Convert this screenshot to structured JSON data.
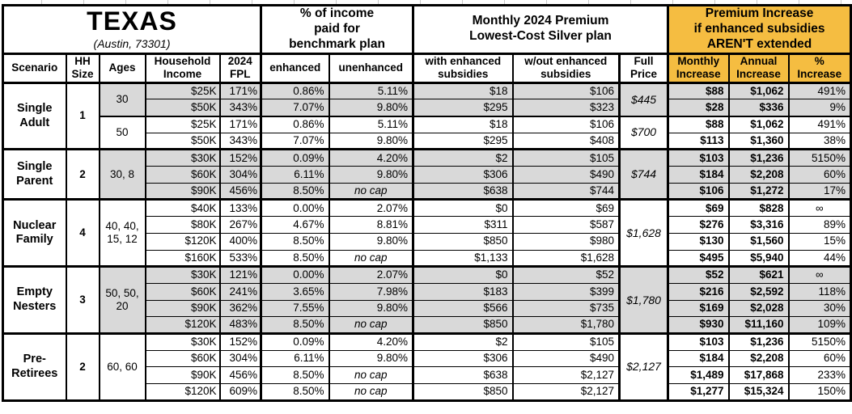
{
  "title": "TEXAS",
  "subtitle": "(Austin, 73301)",
  "colors": {
    "accent_orange": "#F5BD41",
    "shade_gray": "#D9D9D9"
  },
  "header_groups": {
    "benchmark": "% of income\npaid for\nbenchmark plan",
    "premium": "Monthly 2024 Premium\nLowest-Cost Silver plan",
    "increase": "Premium Increase\nif enhanced subsidies\nAREN'T extended"
  },
  "columns": {
    "scenario": "Scenario",
    "hh_size": "HH\nSize",
    "ages": "Ages",
    "income": "Household\nIncome",
    "fpl": "2024\nFPL",
    "enhanced": "enhanced",
    "unenhanced": "unenhanced",
    "with_sub": "with enhanced\nsubsidies",
    "without_sub": "w/out enhanced\nsubsidies",
    "full_price": "Full\nPrice",
    "monthly": "Monthly\nIncrease",
    "annual": "Annual\nIncrease",
    "pct": "%\nIncrease"
  },
  "groups": [
    {
      "scenario": "Single Adult",
      "hh_size": "1",
      "subgroups": [
        {
          "ages": "30",
          "shaded": true,
          "full_price": "$445",
          "rows": [
            {
              "income": "$25K",
              "fpl": "171%",
              "enhanced": "0.86%",
              "unenhanced": "5.11%",
              "with_sub": "$18",
              "without_sub": "$106",
              "monthly": "$88",
              "annual": "$1,062",
              "pct": "491%"
            },
            {
              "income": "$50K",
              "fpl": "343%",
              "enhanced": "7.07%",
              "unenhanced": "9.80%",
              "with_sub": "$295",
              "without_sub": "$323",
              "monthly": "$28",
              "annual": "$336",
              "pct": "9%"
            }
          ]
        },
        {
          "ages": "50",
          "shaded": false,
          "full_price": "$700",
          "rows": [
            {
              "income": "$25K",
              "fpl": "171%",
              "enhanced": "0.86%",
              "unenhanced": "5.11%",
              "with_sub": "$18",
              "without_sub": "$106",
              "monthly": "$88",
              "annual": "$1,062",
              "pct": "491%"
            },
            {
              "income": "$50K",
              "fpl": "343%",
              "enhanced": "7.07%",
              "unenhanced": "9.80%",
              "with_sub": "$295",
              "without_sub": "$408",
              "monthly": "$113",
              "annual": "$1,360",
              "pct": "38%"
            }
          ]
        }
      ]
    },
    {
      "scenario": "Single Parent",
      "hh_size": "2",
      "subgroups": [
        {
          "ages": "30, 8",
          "shaded": true,
          "full_price": "$744",
          "rows": [
            {
              "income": "$30K",
              "fpl": "152%",
              "enhanced": "0.09%",
              "unenhanced": "4.20%",
              "with_sub": "$2",
              "without_sub": "$105",
              "monthly": "$103",
              "annual": "$1,236",
              "pct": "5150%"
            },
            {
              "income": "$60K",
              "fpl": "304%",
              "enhanced": "6.11%",
              "unenhanced": "9.80%",
              "with_sub": "$306",
              "without_sub": "$490",
              "monthly": "$184",
              "annual": "$2,208",
              "pct": "60%"
            },
            {
              "income": "$90K",
              "fpl": "456%",
              "enhanced": "8.50%",
              "unenhanced": "no cap",
              "with_sub": "$638",
              "without_sub": "$744",
              "monthly": "$106",
              "annual": "$1,272",
              "pct": "17%"
            }
          ]
        }
      ]
    },
    {
      "scenario": "Nuclear Family",
      "hh_size": "4",
      "subgroups": [
        {
          "ages": "40, 40, 15, 12",
          "shaded": false,
          "full_price": "$1,628",
          "rows": [
            {
              "income": "$40K",
              "fpl": "133%",
              "enhanced": "0.00%",
              "unenhanced": "2.07%",
              "with_sub": "$0",
              "without_sub": "$69",
              "monthly": "$69",
              "annual": "$828",
              "pct": "∞"
            },
            {
              "income": "$80K",
              "fpl": "267%",
              "enhanced": "4.67%",
              "unenhanced": "8.81%",
              "with_sub": "$311",
              "without_sub": "$587",
              "monthly": "$276",
              "annual": "$3,316",
              "pct": "89%"
            },
            {
              "income": "$120K",
              "fpl": "400%",
              "enhanced": "8.50%",
              "unenhanced": "9.80%",
              "with_sub": "$850",
              "without_sub": "$980",
              "monthly": "$130",
              "annual": "$1,560",
              "pct": "15%"
            },
            {
              "income": "$160K",
              "fpl": "533%",
              "enhanced": "8.50%",
              "unenhanced": "no cap",
              "with_sub": "$1,133",
              "without_sub": "$1,628",
              "monthly": "$495",
              "annual": "$5,940",
              "pct": "44%"
            }
          ]
        }
      ]
    },
    {
      "scenario": "Empty Nesters",
      "hh_size": "3",
      "subgroups": [
        {
          "ages": "50, 50, 20",
          "shaded": true,
          "full_price": "$1,780",
          "rows": [
            {
              "income": "$30K",
              "fpl": "121%",
              "enhanced": "0.00%",
              "unenhanced": "2.07%",
              "with_sub": "$0",
              "without_sub": "$52",
              "monthly": "$52",
              "annual": "$621",
              "pct": "∞"
            },
            {
              "income": "$60K",
              "fpl": "241%",
              "enhanced": "3.65%",
              "unenhanced": "7.98%",
              "with_sub": "$183",
              "without_sub": "$399",
              "monthly": "$216",
              "annual": "$2,592",
              "pct": "118%"
            },
            {
              "income": "$90K",
              "fpl": "362%",
              "enhanced": "7.55%",
              "unenhanced": "9.80%",
              "with_sub": "$566",
              "without_sub": "$735",
              "monthly": "$169",
              "annual": "$2,028",
              "pct": "30%"
            },
            {
              "income": "$120K",
              "fpl": "483%",
              "enhanced": "8.50%",
              "unenhanced": "no cap",
              "with_sub": "$850",
              "without_sub": "$1,780",
              "monthly": "$930",
              "annual": "$11,160",
              "pct": "109%"
            }
          ]
        }
      ]
    },
    {
      "scenario": "Pre-Retirees",
      "hh_size": "2",
      "subgroups": [
        {
          "ages": "60, 60",
          "shaded": false,
          "full_price": "$2,127",
          "rows": [
            {
              "income": "$30K",
              "fpl": "152%",
              "enhanced": "0.09%",
              "unenhanced": "4.20%",
              "with_sub": "$2",
              "without_sub": "$105",
              "monthly": "$103",
              "annual": "$1,236",
              "pct": "5150%"
            },
            {
              "income": "$60K",
              "fpl": "304%",
              "enhanced": "6.11%",
              "unenhanced": "9.80%",
              "with_sub": "$306",
              "without_sub": "$490",
              "monthly": "$184",
              "annual": "$2,208",
              "pct": "60%"
            },
            {
              "income": "$90K",
              "fpl": "456%",
              "enhanced": "8.50%",
              "unenhanced": "no cap",
              "with_sub": "$638",
              "without_sub": "$2,127",
              "monthly": "$1,489",
              "annual": "$17,868",
              "pct": "233%"
            },
            {
              "income": "$120K",
              "fpl": "609%",
              "enhanced": "8.50%",
              "unenhanced": "no cap",
              "with_sub": "$850",
              "without_sub": "$2,127",
              "monthly": "$1,277",
              "annual": "$15,324",
              "pct": "150%"
            }
          ]
        }
      ]
    }
  ]
}
